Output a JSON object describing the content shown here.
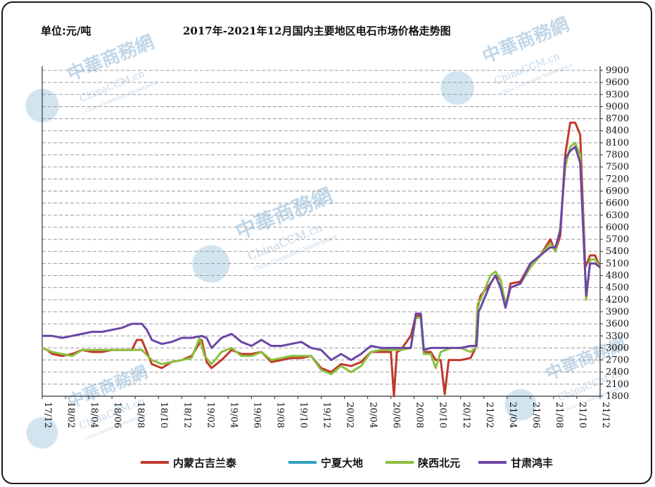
{
  "chart_data": {
    "type": "line",
    "unit_label": "单位:元/吨",
    "title": "2017年-2021年12月国内主要地区电石市场价格走势图",
    "ylim": [
      1800,
      9900
    ],
    "yticks": [
      1800,
      2100,
      2400,
      2700,
      3000,
      3300,
      3600,
      3900,
      4200,
      4500,
      4800,
      5100,
      5400,
      5700,
      6000,
      6300,
      6600,
      6900,
      7200,
      7500,
      7800,
      8100,
      8400,
      8700,
      9000,
      9300,
      9600,
      9900
    ],
    "xticks": [
      "17/12",
      "18/02",
      "18/04",
      "18/06",
      "18/08",
      "18/10",
      "18/12",
      "19/02",
      "19/04",
      "19/06",
      "19/08",
      "19/10",
      "19/12",
      "20/02",
      "20/04",
      "20/06",
      "20/08",
      "20/10",
      "20/12",
      "21/02",
      "21/04",
      "21/06",
      "21/08",
      "21/10",
      "21/12"
    ],
    "grid": true,
    "legend_position": "bottom",
    "series": [
      {
        "name": "内蒙古吉兰泰",
        "color": "#c0392b",
        "values": [
          [
            0,
            3000
          ],
          [
            0.5,
            2950
          ],
          [
            1,
            2850
          ],
          [
            2,
            2800
          ],
          [
            3,
            2850
          ],
          [
            4,
            2950
          ],
          [
            5,
            2900
          ],
          [
            6,
            2900
          ],
          [
            7,
            2950
          ],
          [
            8,
            2950
          ],
          [
            9,
            2950
          ],
          [
            9.5,
            3200
          ],
          [
            10,
            3200
          ],
          [
            10.5,
            2900
          ],
          [
            11,
            2600
          ],
          [
            12,
            2500
          ],
          [
            13,
            2650
          ],
          [
            14,
            2700
          ],
          [
            15,
            2800
          ],
          [
            16,
            3200
          ],
          [
            16.5,
            2650
          ],
          [
            17,
            2500
          ],
          [
            18,
            2700
          ],
          [
            19,
            2950
          ],
          [
            20,
            2850
          ],
          [
            21,
            2850
          ],
          [
            22,
            2900
          ],
          [
            23,
            2650
          ],
          [
            24,
            2700
          ],
          [
            25,
            2750
          ],
          [
            26,
            2750
          ],
          [
            27,
            2800
          ],
          [
            28,
            2500
          ],
          [
            29,
            2400
          ],
          [
            30,
            2600
          ],
          [
            31,
            2550
          ],
          [
            32,
            2650
          ],
          [
            33,
            2900
          ],
          [
            34,
            2900
          ],
          [
            35,
            2900
          ],
          [
            35.3,
            1800
          ],
          [
            35.6,
            2900
          ],
          [
            36,
            2950
          ],
          [
            37,
            3300
          ],
          [
            37.5,
            3800
          ],
          [
            38,
            3800
          ],
          [
            38.3,
            2900
          ],
          [
            39,
            2900
          ],
          [
            39.5,
            2700
          ],
          [
            40,
            2700
          ],
          [
            40.4,
            1850
          ],
          [
            40.8,
            2700
          ],
          [
            42,
            2700
          ],
          [
            43,
            2750
          ],
          [
            43.5,
            3000
          ],
          [
            43.7,
            4000
          ],
          [
            44,
            4300
          ],
          [
            45,
            4600
          ],
          [
            45.5,
            4800
          ],
          [
            46,
            4700
          ],
          [
            46.5,
            4000
          ],
          [
            47,
            4600
          ],
          [
            48,
            4650
          ],
          [
            49,
            5100
          ],
          [
            50,
            5300
          ],
          [
            51,
            5700
          ],
          [
            51.5,
            5400
          ],
          [
            52,
            5800
          ],
          [
            52.5,
            7800
          ],
          [
            53,
            8600
          ],
          [
            53.5,
            8600
          ],
          [
            54,
            8300
          ],
          [
            54.5,
            5000
          ],
          [
            55,
            5300
          ],
          [
            55.5,
            5300
          ],
          [
            56,
            5000
          ]
        ]
      },
      {
        "name": "宁夏大地",
        "color": "#2e9fc0",
        "values": []
      },
      {
        "name": "陕西北元",
        "color": "#8cbf3f",
        "values": [
          [
            0,
            3000
          ],
          [
            0.5,
            2950
          ],
          [
            1,
            2900
          ],
          [
            2,
            2850
          ],
          [
            3,
            2800
          ],
          [
            4,
            2950
          ],
          [
            5,
            2950
          ],
          [
            6,
            2950
          ],
          [
            7,
            2950
          ],
          [
            8,
            2950
          ],
          [
            9,
            2950
          ],
          [
            10,
            2950
          ],
          [
            11,
            2700
          ],
          [
            12,
            2600
          ],
          [
            13,
            2650
          ],
          [
            14,
            2700
          ],
          [
            15,
            2750
          ],
          [
            15.8,
            3250
          ],
          [
            16.3,
            2800
          ],
          [
            17,
            2600
          ],
          [
            18,
            2900
          ],
          [
            19,
            3000
          ],
          [
            20,
            2800
          ],
          [
            21,
            2800
          ],
          [
            22,
            2900
          ],
          [
            23,
            2700
          ],
          [
            24,
            2750
          ],
          [
            25,
            2800
          ],
          [
            26,
            2800
          ],
          [
            27,
            2800
          ],
          [
            28,
            2450
          ],
          [
            29,
            2350
          ],
          [
            30,
            2550
          ],
          [
            31,
            2400
          ],
          [
            32,
            2550
          ],
          [
            33,
            2900
          ],
          [
            34,
            2950
          ],
          [
            35,
            2950
          ],
          [
            36,
            2950
          ],
          [
            37,
            3000
          ],
          [
            37.5,
            3750
          ],
          [
            38,
            3750
          ],
          [
            38.3,
            2850
          ],
          [
            39,
            2850
          ],
          [
            39.5,
            2500
          ],
          [
            40,
            2900
          ],
          [
            41,
            3000
          ],
          [
            42,
            3000
          ],
          [
            43,
            2900
          ],
          [
            43.5,
            3000
          ],
          [
            43.7,
            4100
          ],
          [
            44,
            4200
          ],
          [
            45,
            4800
          ],
          [
            45.5,
            4900
          ],
          [
            46,
            4700
          ],
          [
            46.5,
            4100
          ],
          [
            47,
            4500
          ],
          [
            48,
            4600
          ],
          [
            49,
            5000
          ],
          [
            50,
            5300
          ],
          [
            51,
            5600
          ],
          [
            51.5,
            5400
          ],
          [
            52,
            6000
          ],
          [
            52.5,
            7500
          ],
          [
            53,
            8000
          ],
          [
            53.5,
            8100
          ],
          [
            54,
            7800
          ],
          [
            54.6,
            4200
          ],
          [
            55,
            5200
          ],
          [
            55.5,
            5200
          ],
          [
            56,
            5000
          ]
        ]
      },
      {
        "name": "甘肃鸿丰",
        "color": "#6b46a6",
        "values": [
          [
            0,
            3300
          ],
          [
            1,
            3300
          ],
          [
            2,
            3250
          ],
          [
            3,
            3300
          ],
          [
            4,
            3350
          ],
          [
            5,
            3400
          ],
          [
            6,
            3400
          ],
          [
            7,
            3450
          ],
          [
            8,
            3500
          ],
          [
            9,
            3600
          ],
          [
            10,
            3600
          ],
          [
            10.5,
            3450
          ],
          [
            11,
            3200
          ],
          [
            12,
            3100
          ],
          [
            13,
            3150
          ],
          [
            14,
            3250
          ],
          [
            15,
            3250
          ],
          [
            16,
            3300
          ],
          [
            16.5,
            3250
          ],
          [
            17,
            3000
          ],
          [
            18,
            3250
          ],
          [
            19,
            3350
          ],
          [
            20,
            3150
          ],
          [
            21,
            3050
          ],
          [
            22,
            3200
          ],
          [
            23,
            3050
          ],
          [
            24,
            3050
          ],
          [
            25,
            3100
          ],
          [
            26,
            3150
          ],
          [
            27,
            3000
          ],
          [
            28,
            2950
          ],
          [
            29,
            2700
          ],
          [
            30,
            2850
          ],
          [
            31,
            2700
          ],
          [
            32,
            2850
          ],
          [
            33,
            3050
          ],
          [
            34,
            3000
          ],
          [
            35,
            3000
          ],
          [
            36,
            3000
          ],
          [
            37,
            3000
          ],
          [
            37.5,
            3850
          ],
          [
            38,
            3850
          ],
          [
            38.3,
            2950
          ],
          [
            39,
            3000
          ],
          [
            40,
            3000
          ],
          [
            41,
            3000
          ],
          [
            42,
            3000
          ],
          [
            43,
            3050
          ],
          [
            43.6,
            3050
          ],
          [
            43.8,
            3900
          ],
          [
            44,
            4000
          ],
          [
            45,
            4600
          ],
          [
            45.5,
            4800
          ],
          [
            46,
            4500
          ],
          [
            46.5,
            4000
          ],
          [
            47,
            4500
          ],
          [
            48,
            4600
          ],
          [
            49,
            5100
          ],
          [
            50,
            5300
          ],
          [
            51,
            5500
          ],
          [
            51.5,
            5500
          ],
          [
            52,
            5900
          ],
          [
            52.5,
            7700
          ],
          [
            53,
            7900
          ],
          [
            53.5,
            8000
          ],
          [
            54,
            7600
          ],
          [
            54.6,
            4300
          ],
          [
            55,
            5100
          ],
          [
            55.5,
            5100
          ],
          [
            56,
            5000
          ]
        ]
      }
    ]
  },
  "watermark": {
    "cn_text": "中華商務網",
    "en_text": "ChinaCCM.cn",
    "tagline": "China Commodity Marketplace"
  }
}
